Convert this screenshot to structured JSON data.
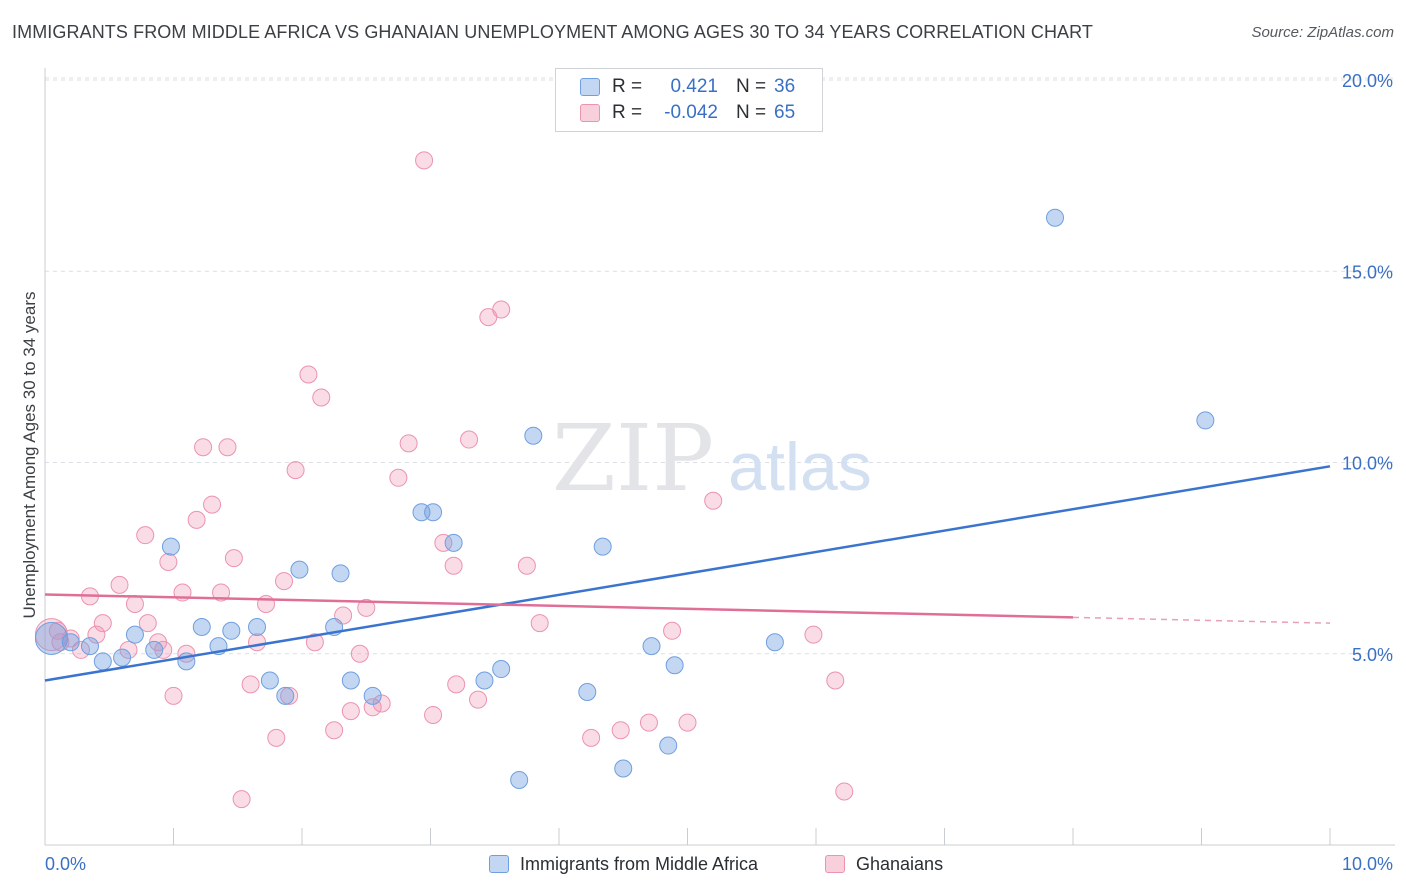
{
  "title": "IMMIGRANTS FROM MIDDLE AFRICA VS GHANAIAN UNEMPLOYMENT AMONG AGES 30 TO 34 YEARS CORRELATION CHART",
  "source": "Source: ZipAtlas.com",
  "watermark": {
    "zip": "ZIP",
    "atlas": "atlas"
  },
  "legend": {
    "rows": [
      {
        "r_label": "R =",
        "r_value": "0.421",
        "n_label": "N =",
        "n_value": "36",
        "color": "#6f9fe0"
      },
      {
        "r_label": "R =",
        "r_value": "-0.042",
        "n_label": "N =",
        "n_value": "65",
        "color": "#ec93b0"
      }
    ]
  },
  "bottom_legend": [
    {
      "label": "Immigrants from Middle Africa",
      "color": "#6f9fe0"
    },
    {
      "label": "Ghanaians",
      "color": "#ec93b0"
    }
  ],
  "chart_data": {
    "type": "scatter",
    "title": "IMMIGRANTS FROM MIDDLE AFRICA VS GHANAIAN UNEMPLOYMENT AMONG AGES 30 TO 34 YEARS CORRELATION CHART",
    "xlabel": "",
    "ylabel": "Unemployment Among Ages 30 to 34 years",
    "xlim": [
      0,
      10
    ],
    "ylim": [
      0,
      20
    ],
    "x_tick_labels": [
      "0.0%",
      "10.0%"
    ],
    "y_ticks": [
      5,
      10,
      15,
      20
    ],
    "y_tick_labels": [
      "5.0%",
      "10.0%",
      "15.0%",
      "20.0%"
    ],
    "grid": true,
    "legend_position": "top-center",
    "series": [
      {
        "name": "Immigrants from Middle Africa",
        "color": "#6f9fe0",
        "r": 0.421,
        "n": 36,
        "trend": {
          "x": [
            0,
            10
          ],
          "y": [
            4.3,
            9.9
          ]
        },
        "points": [
          [
            0.05,
            5.4
          ],
          [
            0.2,
            5.3
          ],
          [
            0.35,
            5.2
          ],
          [
            0.45,
            4.8
          ],
          [
            0.6,
            4.9
          ],
          [
            0.7,
            5.5
          ],
          [
            0.85,
            5.1
          ],
          [
            0.98,
            7.8
          ],
          [
            1.1,
            4.8
          ],
          [
            1.22,
            5.7
          ],
          [
            1.35,
            5.2
          ],
          [
            1.45,
            5.6
          ],
          [
            1.65,
            5.7
          ],
          [
            1.75,
            4.3
          ],
          [
            1.87,
            3.9
          ],
          [
            1.98,
            7.2
          ],
          [
            2.25,
            5.7
          ],
          [
            2.3,
            7.1
          ],
          [
            2.38,
            4.3
          ],
          [
            2.55,
            3.9
          ],
          [
            2.93,
            8.7
          ],
          [
            3.02,
            8.7
          ],
          [
            3.18,
            7.9
          ],
          [
            3.42,
            4.3
          ],
          [
            3.55,
            4.6
          ],
          [
            3.69,
            1.7
          ],
          [
            3.8,
            10.7
          ],
          [
            4.22,
            4.0
          ],
          [
            4.34,
            7.8
          ],
          [
            4.5,
            2.0
          ],
          [
            4.72,
            5.2
          ],
          [
            4.85,
            2.6
          ],
          [
            4.9,
            4.7
          ],
          [
            5.68,
            5.3
          ],
          [
            7.86,
            16.4
          ],
          [
            9.03,
            11.1
          ]
        ]
      },
      {
        "name": "Ghanaians",
        "color": "#ec93b0",
        "r": -0.042,
        "n": 65,
        "trend": {
          "x": [
            0,
            8.0
          ],
          "y": [
            6.55,
            5.95
          ]
        },
        "trend_dashed": {
          "x": [
            8.0,
            10
          ],
          "y": [
            5.95,
            5.8
          ]
        },
        "points": [
          [
            0.05,
            5.5
          ],
          [
            0.12,
            5.3
          ],
          [
            0.2,
            5.4
          ],
          [
            0.28,
            5.1
          ],
          [
            0.35,
            6.5
          ],
          [
            0.4,
            5.5
          ],
          [
            0.45,
            5.8
          ],
          [
            0.58,
            6.8
          ],
          [
            0.65,
            5.1
          ],
          [
            0.7,
            6.3
          ],
          [
            0.78,
            8.1
          ],
          [
            0.8,
            5.8
          ],
          [
            0.88,
            5.3
          ],
          [
            0.92,
            5.1
          ],
          [
            0.96,
            7.4
          ],
          [
            1.0,
            3.9
          ],
          [
            1.07,
            6.6
          ],
          [
            1.1,
            5.0
          ],
          [
            1.18,
            8.5
          ],
          [
            1.23,
            10.4
          ],
          [
            1.3,
            8.9
          ],
          [
            1.37,
            6.6
          ],
          [
            1.42,
            10.4
          ],
          [
            1.47,
            7.5
          ],
          [
            1.53,
            1.2
          ],
          [
            1.6,
            4.2
          ],
          [
            1.65,
            5.3
          ],
          [
            1.72,
            6.3
          ],
          [
            1.8,
            2.8
          ],
          [
            1.86,
            6.9
          ],
          [
            1.9,
            3.9
          ],
          [
            1.95,
            9.8
          ],
          [
            2.05,
            12.3
          ],
          [
            2.1,
            5.3
          ],
          [
            2.15,
            11.7
          ],
          [
            2.25,
            3.0
          ],
          [
            2.32,
            6.0
          ],
          [
            2.38,
            3.5
          ],
          [
            2.45,
            5.0
          ],
          [
            2.5,
            6.2
          ],
          [
            2.55,
            3.6
          ],
          [
            2.62,
            3.7
          ],
          [
            2.75,
            9.6
          ],
          [
            2.83,
            10.5
          ],
          [
            2.95,
            17.9
          ],
          [
            3.02,
            3.4
          ],
          [
            3.1,
            7.9
          ],
          [
            3.18,
            7.3
          ],
          [
            3.2,
            4.2
          ],
          [
            3.3,
            10.6
          ],
          [
            3.37,
            3.8
          ],
          [
            3.45,
            13.8
          ],
          [
            3.55,
            14.0
          ],
          [
            3.75,
            7.3
          ],
          [
            3.85,
            5.8
          ],
          [
            4.25,
            2.8
          ],
          [
            4.48,
            3.0
          ],
          [
            4.7,
            3.2
          ],
          [
            4.88,
            5.6
          ],
          [
            5.0,
            3.2
          ],
          [
            5.2,
            9.0
          ],
          [
            5.98,
            5.5
          ],
          [
            6.15,
            4.3
          ],
          [
            6.22,
            1.4
          ],
          [
            0.1,
            5.6
          ]
        ]
      }
    ]
  }
}
